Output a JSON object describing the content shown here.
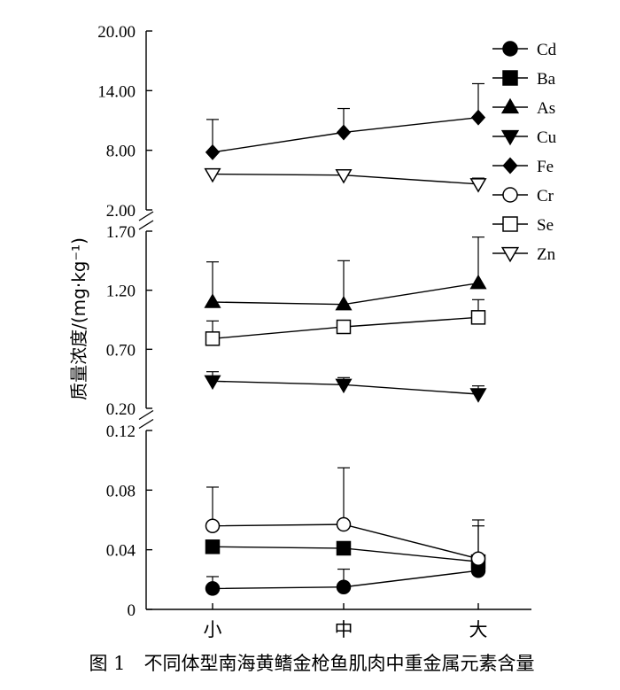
{
  "chart_data": {
    "type": "line",
    "ylabel": "质量浓度/(mg·kg⁻¹)",
    "categories": [
      "小",
      "中",
      "大"
    ],
    "caption": "图 1　不同体型南海黄鳍金枪鱼肌肉中重金属元素含量",
    "panels": [
      {
        "name": "top",
        "ylim": [
          2.0,
          20.0
        ],
        "ticks": [
          {
            "v": 20,
            "label": "20.00"
          },
          {
            "v": 14,
            "label": "14.00"
          },
          {
            "v": 8,
            "label": "8.00"
          },
          {
            "v": 2,
            "label": "2.00"
          }
        ]
      },
      {
        "name": "middle",
        "ylim": [
          0.2,
          1.7
        ],
        "ticks": [
          {
            "v": 1.7,
            "label": "1.70"
          },
          {
            "v": 1.2,
            "label": "1.20"
          },
          {
            "v": 0.7,
            "label": "0.70"
          },
          {
            "v": 0.2,
            "label": "0.20"
          }
        ]
      },
      {
        "name": "bottom",
        "ylim": [
          0,
          0.12
        ],
        "ticks": [
          {
            "v": 0.12,
            "label": "0.12"
          },
          {
            "v": 0.08,
            "label": "0.08"
          },
          {
            "v": 0.04,
            "label": "0.04"
          },
          {
            "v": 0,
            "label": "0"
          }
        ]
      }
    ],
    "series": [
      {
        "name": "Cd",
        "marker": "circle",
        "filled": true,
        "panel": 2,
        "values": [
          0.014,
          0.015,
          0.026
        ],
        "err": [
          0.008,
          0.012,
          0.03
        ],
        "err_dir": "up"
      },
      {
        "name": "Ba",
        "marker": "square",
        "filled": true,
        "panel": 2,
        "values": [
          0.042,
          0.041,
          0.032
        ],
        "err": [
          0,
          0,
          0
        ],
        "err_dir": "up"
      },
      {
        "name": "As",
        "marker": "triangle-up",
        "filled": true,
        "panel": 1,
        "values": [
          1.1,
          1.08,
          1.26
        ],
        "err": [
          0.34,
          0.37,
          0.39
        ],
        "err_dir": "up"
      },
      {
        "name": "Cu",
        "marker": "triangle-down",
        "filled": true,
        "panel": 1,
        "values": [
          0.43,
          0.4,
          0.32
        ],
        "err": [
          0.08,
          0.06,
          0.07
        ],
        "err_dir": "up"
      },
      {
        "name": "Fe",
        "marker": "diamond",
        "filled": true,
        "panel": 0,
        "values": [
          7.8,
          9.8,
          11.3
        ],
        "err": [
          3.3,
          2.4,
          3.4
        ],
        "err_dir": "up"
      },
      {
        "name": "Cr",
        "marker": "circle",
        "filled": false,
        "panel": 2,
        "values": [
          0.056,
          0.057,
          0.034
        ],
        "err": [
          0.026,
          0.038,
          0.026
        ],
        "err_dir": "up"
      },
      {
        "name": "Se",
        "marker": "square",
        "filled": false,
        "panel": 1,
        "values": [
          0.79,
          0.89,
          0.97
        ],
        "err": [
          0.15,
          0,
          0.15
        ],
        "err_dir": "up"
      },
      {
        "name": "Zn",
        "marker": "triangle-down",
        "filled": false,
        "panel": 0,
        "values": [
          5.6,
          5.5,
          4.6
        ],
        "err": [
          0,
          0.5,
          0.6
        ],
        "err_dir": "up"
      }
    ]
  }
}
